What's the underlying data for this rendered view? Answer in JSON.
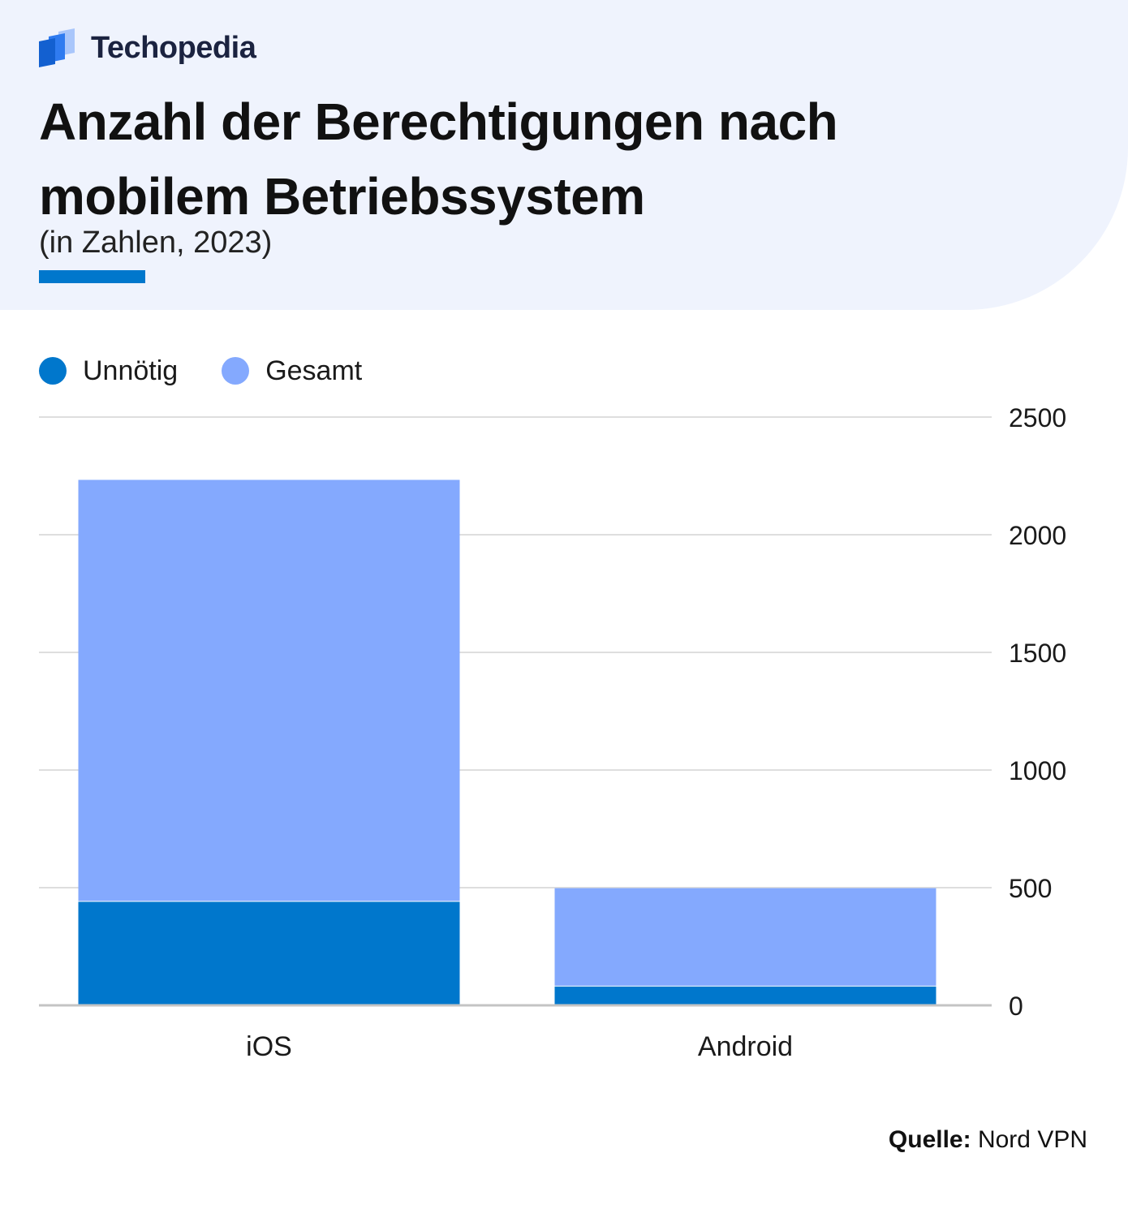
{
  "brand": {
    "name": "Techopedia",
    "logo_icon": "stacked-pages-icon",
    "colors": {
      "dark": "#1360d0",
      "mid": "#2f7bf0",
      "light": "#a9c6fb"
    }
  },
  "header": {
    "title": "Anzahl der Berechtigungen nach mobilem Betriebssystem",
    "subtitle": "(in Zahlen, 2023)",
    "accent_color": "#0077cc",
    "background_color": "#eff3fd"
  },
  "chart_data": {
    "type": "bar",
    "stacked": true,
    "title": "Anzahl der Berechtigungen nach mobilem Betriebssystem",
    "subtitle": "(in Zahlen, 2023)",
    "categories": [
      "iOS",
      "Android"
    ],
    "series": [
      {
        "name": "Unnötig",
        "values": [
          440,
          80
        ],
        "color": "#0077cc"
      },
      {
        "name": "Gesamt",
        "values": [
          1800,
          425
        ],
        "color": "#84a9fe"
      }
    ],
    "xlabel": "",
    "ylabel": "",
    "ylim": [
      0,
      2500
    ],
    "yticks": [
      0,
      500,
      1000,
      1500,
      2000,
      2500
    ],
    "ytick_labels": [
      "0",
      "500",
      "1000",
      "1500",
      "2000",
      "2500"
    ],
    "y_axis_side": "right",
    "grid": true,
    "legend_position": "top-left"
  },
  "source": {
    "label": "Quelle:",
    "value": "Nord VPN"
  }
}
